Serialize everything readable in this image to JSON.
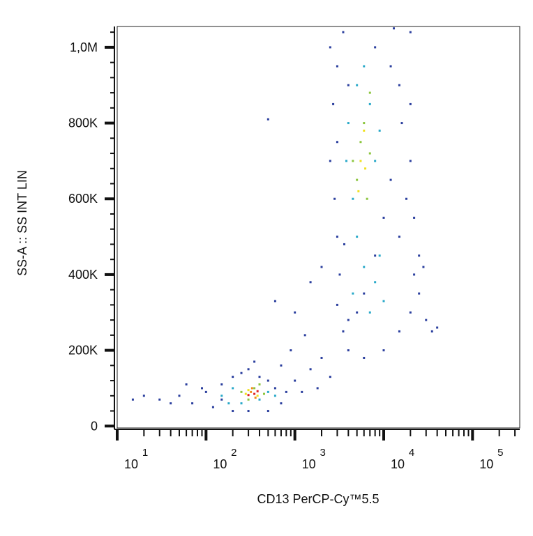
{
  "chart_data": {
    "type": "scatter",
    "xscale": "log",
    "frame": true,
    "xlabel": "CD13 PerCP-Cy™5.5",
    "ylabel": "SS-A :: SS INT LIN",
    "xlim": [
      10,
      340000
    ],
    "ylim": [
      -5000,
      1055000
    ],
    "xticks": [
      {
        "value": 10,
        "label": "10",
        "sup": "1"
      },
      {
        "value": 100,
        "label": "10",
        "sup": "2"
      },
      {
        "value": 1000,
        "label": "10",
        "sup": "3"
      },
      {
        "value": 10000,
        "label": "10",
        "sup": "4"
      },
      {
        "value": 100000,
        "label": "10",
        "sup": "5"
      }
    ],
    "xminorticks": [
      20,
      30,
      40,
      50,
      60,
      70,
      80,
      90,
      200,
      300,
      400,
      500,
      600,
      700,
      800,
      900,
      2000,
      3000,
      4000,
      5000,
      6000,
      7000,
      8000,
      9000,
      20000,
      30000,
      40000,
      50000,
      60000,
      70000,
      80000,
      90000,
      200000,
      300000
    ],
    "yticks": [
      0,
      {
        "value": 200000,
        "label": "200K"
      },
      {
        "value": 400000,
        "label": "400K"
      },
      {
        "value": 600000,
        "label": "600K"
      },
      {
        "value": 800000,
        "label": "800K"
      },
      {
        "value": 1000000,
        "label": "1,0M"
      }
    ],
    "yminorticks": [
      40000,
      80000,
      120000,
      160000,
      240000,
      280000,
      320000,
      360000,
      440000,
      480000,
      520000,
      560000,
      640000,
      680000,
      720000,
      760000,
      840000,
      880000,
      920000,
      960000,
      1040000
    ],
    "series": [
      {
        "color": "#2b3f9e",
        "x": [
          30,
          50,
          70,
          100,
          120,
          150,
          150,
          200,
          200,
          250,
          300,
          300,
          400,
          500,
          600,
          700,
          800,
          500,
          90,
          60,
          40,
          20,
          15,
          350,
          700,
          1000,
          1200,
          1500,
          2000,
          2500,
          1800,
          900,
          1300,
          1000,
          1500,
          600,
          2000,
          500,
          2500,
          3000,
          3500,
          4000,
          8000,
          12000,
          15000,
          20000,
          20000,
          2500,
          2800,
          3000,
          3200,
          3000,
          3500,
          4000,
          6000,
          10000,
          15000,
          20000,
          25000,
          30000,
          35000,
          25000,
          15000,
          18000,
          20000,
          16000,
          12000,
          10000,
          8000,
          6000,
          5000,
          4000,
          3000,
          2700,
          3600,
          22000,
          28000,
          40000,
          22000,
          13000
        ],
        "values": [
          70000,
          80000,
          60000,
          90000,
          50000,
          110000,
          70000,
          130000,
          40000,
          140000,
          150000,
          40000,
          130000,
          120000,
          100000,
          60000,
          90000,
          40000,
          100000,
          110000,
          60000,
          80000,
          70000,
          170000,
          160000,
          120000,
          90000,
          150000,
          180000,
          130000,
          100000,
          200000,
          240000,
          300000,
          380000,
          330000,
          420000,
          810000,
          1000000,
          950000,
          1040000,
          900000,
          1000000,
          950000,
          900000,
          1040000,
          850000,
          700000,
          600000,
          500000,
          400000,
          320000,
          250000,
          200000,
          180000,
          200000,
          250000,
          300000,
          350000,
          280000,
          250000,
          450000,
          500000,
          600000,
          700000,
          800000,
          650000,
          550000,
          450000,
          350000,
          300000,
          280000,
          750000,
          850000,
          480000,
          400000,
          420000,
          260000,
          550000,
          1050000
        ]
      },
      {
        "color": "#29a9c9",
        "x": [
          150,
          200,
          400,
          500,
          250,
          600,
          180,
          4000,
          5000,
          6000,
          7000,
          4500,
          8000,
          9000,
          5000,
          6000,
          8000,
          10000,
          7000,
          4500,
          9000,
          3800
        ],
        "values": [
          80000,
          100000,
          70000,
          90000,
          60000,
          80000,
          60000,
          800000,
          900000,
          950000,
          850000,
          600000,
          700000,
          780000,
          500000,
          420000,
          380000,
          330000,
          300000,
          350000,
          450000,
          700000
        ]
      },
      {
        "color": "#8cc63f",
        "x": [
          250,
          350,
          450,
          300,
          400,
          5000,
          6000,
          7000,
          5500,
          4500,
          6500,
          7000
        ],
        "values": [
          90000,
          100000,
          85000,
          70000,
          110000,
          650000,
          800000,
          880000,
          750000,
          700000,
          600000,
          720000
        ]
      },
      {
        "color": "#f0e020",
        "x": [
          300,
          380,
          280,
          5500,
          6000,
          5200,
          6200
        ],
        "values": [
          95000,
          80000,
          85000,
          700000,
          780000,
          620000,
          680000
        ]
      },
      {
        "color": "#f08a20",
        "x": [
          320,
          360,
          330
        ],
        "values": [
          90000,
          75000,
          100000
        ]
      },
      {
        "color": "#e02020",
        "x": [
          350,
          300,
          380
        ],
        "values": [
          85000,
          82000,
          92000
        ]
      }
    ]
  }
}
